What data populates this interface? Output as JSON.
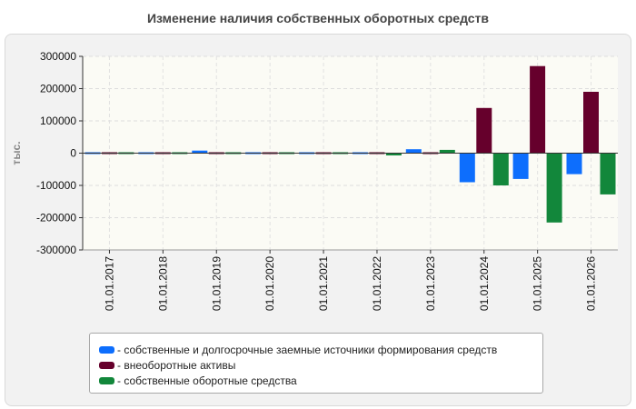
{
  "chart_data": {
    "type": "bar",
    "title": "Изменение наличия собственных оборотных средств",
    "ylabel": "тыс.",
    "xlabel": "",
    "ylim": [
      -300000,
      300000
    ],
    "yticks": [
      300000,
      200000,
      100000,
      0,
      -100000,
      -200000,
      -300000
    ],
    "grid": true,
    "legend_position": "bottom",
    "categories": [
      "01.01.2017",
      "01.01.2018",
      "01.01.2019",
      "01.01.2020",
      "01.01.2021",
      "01.01.2022",
      "01.01.2023",
      "01.01.2024",
      "01.01.2025",
      "01.01.2026"
    ],
    "series": [
      {
        "name": "собственные и долгосрочные заемные источники формирования средств",
        "color": "#0d6efd",
        "values": [
          4000,
          5000,
          8000,
          5000,
          5000,
          5000,
          12000,
          -90000,
          -80000,
          -65000
        ]
      },
      {
        "name": "внеоборотные активы",
        "color": "#66002c",
        "values": [
          3000,
          3000,
          3000,
          3000,
          3000,
          3000,
          2000,
          140000,
          270000,
          190000
        ]
      },
      {
        "name": "собственные оборотные средства",
        "color": "#12873b",
        "values": [
          4000,
          4000,
          4000,
          2000,
          -3000,
          -7000,
          10000,
          -100000,
          -215000,
          -128000
        ]
      }
    ]
  }
}
